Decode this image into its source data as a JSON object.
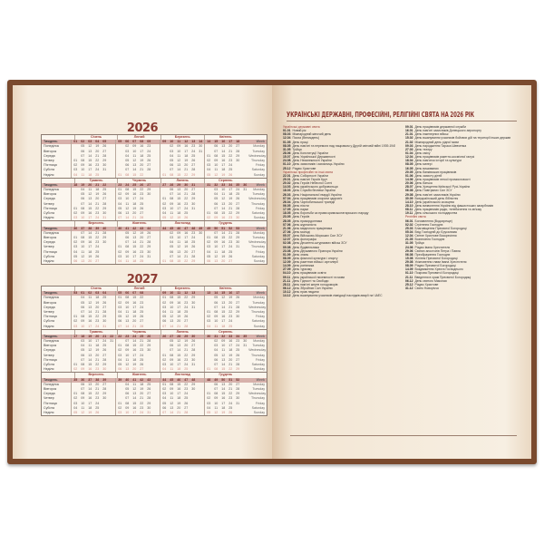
{
  "calendar": {
    "years": [
      2026,
      2027
    ],
    "week_label": "Тиждень",
    "week_label_en": "Week",
    "months": [
      "Січень",
      "Лютий",
      "Березень",
      "Квітень",
      "Травень",
      "Червень",
      "Липень",
      "Серпень",
      "Вересень",
      "Жовтень",
      "Листопад",
      "Грудень"
    ],
    "weekdays": [
      "Понеділок",
      "Вівторок",
      "Середа",
      "Четвер",
      "П'ятниця",
      "Субота",
      "Неділя"
    ],
    "weekdays_en": [
      "Monday",
      "Tuesday",
      "Wednesday",
      "Thursday",
      "Friday",
      "Saturday",
      "Sunday"
    ],
    "colors": {
      "header": "#d7b1ab",
      "month": "#9b3a35",
      "sunday": "#c9857d",
      "cover": "#7a4a2e"
    }
  },
  "holidays": {
    "title": "УКРАЇНСЬКІ ДЕРЖАВНІ, ПРОФЕСІЙНІ, РЕЛІГІЙНІ СВЯТА НА 2026 РІК",
    "left": [
      {
        "s": "Українські державні свята"
      },
      {
        "d": "01.01",
        "t": "Новий рік"
      },
      {
        "d": "08.03",
        "t": "Міжнародний жіночий день"
      },
      {
        "d": "12.04",
        "t": "Пасха (Великдень)"
      },
      {
        "d": "01.05",
        "t": "День праці"
      },
      {
        "d": "08.05",
        "t": "День пам'яті та перемоги над нацизмом у Другій світовій війні 1939-1945 років"
      },
      {
        "d": "31.05",
        "t": "Трійця"
      },
      {
        "d": "28.06",
        "t": "День Конституції України"
      },
      {
        "d": "15.07",
        "t": "День Української Державності"
      },
      {
        "d": "24.08",
        "t": "День Незалежності України"
      },
      {
        "d": "01.10",
        "t": "День захисників і захисниць України"
      },
      {
        "d": "25.12",
        "t": "Різдво Христове"
      },
      {
        "s": "Українські професійні та інші свята"
      },
      {
        "d": "22.01",
        "t": "День Соборності України"
      },
      {
        "d": "29.01",
        "t": "День пам'яті Героїв Крут"
      },
      {
        "d": "20.02",
        "t": "День Героїв Небесної Сотні"
      },
      {
        "d": "14.03",
        "t": "День українського добровольця"
      },
      {
        "d": "18.03",
        "t": "День Служби безпеки України"
      },
      {
        "d": "26.03",
        "t": "День Національної гвардії України"
      },
      {
        "d": "07.04",
        "t": "День працівників охорони здоров'я"
      },
      {
        "d": "26.04",
        "t": "День Чорнобильської трагедії"
      },
      {
        "d": "06.05",
        "t": "День піхоти"
      },
      {
        "d": "17.05",
        "t": "День науки"
      },
      {
        "d": "18.05",
        "t": "День боротьби за права кримськотатарського народу"
      },
      {
        "d": "23.05",
        "t": "День Героїв"
      },
      {
        "d": "28.05",
        "t": "День прикордонника"
      },
      {
        "d": "07.06",
        "t": "День журналіста"
      },
      {
        "d": "21.06",
        "t": "День медичного працівника"
      },
      {
        "d": "27.06",
        "t": "День молоді"
      },
      {
        "d": "05.07",
        "t": "День Військово-Морських Сил ЗСУ"
      },
      {
        "d": "12.07",
        "t": "День фотографа"
      },
      {
        "d": "02.08",
        "t": "День Десантно-штурмових військ ЗСУ"
      },
      {
        "d": "09.08",
        "t": "День будівельника"
      },
      {
        "d": "23.08",
        "t": "День Державного Прапора України"
      },
      {
        "d": "01.09",
        "t": "День знань"
      },
      {
        "d": "08.09",
        "t": "День фізичної культури і спорту"
      },
      {
        "d": "12.09",
        "t": "День ракетних військ і артилерії"
      },
      {
        "d": "14.09",
        "t": "День рятівника"
      },
      {
        "d": "27.09",
        "t": "День туризму"
      },
      {
        "d": "04.10",
        "t": "День працівників освіти"
      },
      {
        "d": "09.11",
        "t": "День української писемності та мови"
      },
      {
        "d": "21.11",
        "t": "День Гідності та Свободи"
      },
      {
        "d": "28.11",
        "t": "День пам'яті жертв голодоморів"
      },
      {
        "d": "06.12",
        "t": "День Збройних Сил України"
      },
      {
        "d": "10.12",
        "t": "День прав людини"
      },
      {
        "d": "14.12",
        "t": "День вшанування учасників ліквідації наслідків аварії на ЧАЕС"
      }
    ],
    "right": [
      {
        "d": "09.01",
        "t": "День працівників державної служби"
      },
      {
        "d": "16.01",
        "t": "День пам'яті захисників Донецького аеропорту"
      },
      {
        "d": "21.01",
        "t": "День інженерних військ"
      },
      {
        "d": "15.02",
        "t": "День вшанування учасників бойових дій на території інших держав"
      },
      {
        "d": "21.02",
        "t": "Міжнародний день рідної мови"
      },
      {
        "d": "09.03",
        "t": "День народження Тараса Шевченка"
      },
      {
        "d": "27.03",
        "t": "День театру"
      },
      {
        "d": "01.04",
        "t": "День сміху"
      },
      {
        "d": "12.04",
        "t": "День працівників ракетно-космічної галузі"
      },
      {
        "d": "18.04",
        "t": "День пам'яток історії та культури"
      },
      {
        "d": "08.05",
        "t": "День матері"
      },
      {
        "d": "16.05",
        "t": "День вишиванки"
      },
      {
        "d": "20.05",
        "t": "День банківських працівників"
      },
      {
        "d": "01.06",
        "t": "День захисту дітей"
      },
      {
        "d": "14.06",
        "t": "День працівників легкої промисловості"
      },
      {
        "d": "20.06",
        "t": "День батька"
      },
      {
        "d": "28.07",
        "t": "День Хрещення Київської Русі-України"
      },
      {
        "d": "06.08",
        "t": "День Повітряних Сил ЗСУ"
      },
      {
        "d": "29.08",
        "t": "День пам'яті захисників України"
      },
      {
        "d": "30.09",
        "t": "Всеукраїнський день бібліотек"
      },
      {
        "d": "14.10",
        "t": "День українського козацтва"
      },
      {
        "d": "28.10",
        "t": "День визволення України від фашистських загарбників"
      },
      {
        "d": "08.11",
        "t": "День працівників радіо, телебачення та зв'язку"
      },
      {
        "d": "19.11",
        "t": "День сільського господарства"
      },
      {
        "s": "Релігійні свята"
      },
      {
        "d": "06.01",
        "t": "Богоявлення (Водохреще)"
      },
      {
        "d": "02.02",
        "t": "Стрітення Господнє"
      },
      {
        "d": "25.03",
        "t": "Благовіщення Пресвятої Богородиці"
      },
      {
        "d": "05.04",
        "t": "Вхід Господній до Єрусалима"
      },
      {
        "d": "12.04",
        "t": "Світле Христове Воскресіння"
      },
      {
        "d": "21.05",
        "t": "Вознесіння Господнє"
      },
      {
        "d": "31.05",
        "t": "Трійця"
      },
      {
        "d": "24.06",
        "t": "Різдво Івана Хрестителя"
      },
      {
        "d": "29.06",
        "t": "Святих апостолів Петра і Павла"
      },
      {
        "d": "06.08",
        "t": "Преображення Господнє"
      },
      {
        "d": "15.08",
        "t": "Успіння Пресвятої Богородиці"
      },
      {
        "d": "29.08",
        "t": "Усікновення глави Івана Хрестителя"
      },
      {
        "d": "08.09",
        "t": "Різдво Пресвятої Богородиці"
      },
      {
        "d": "14.09",
        "t": "Воздвиження Хреста Господнього"
      },
      {
        "d": "01.10",
        "t": "Покрова Пресвятої Богородиці"
      },
      {
        "d": "21.11",
        "t": "Введення в храм Пресвятої Богородиці"
      },
      {
        "d": "06.12",
        "t": "День святого Миколая"
      },
      {
        "d": "25.12",
        "t": "Різдво Христове"
      },
      {
        "d": "31.12",
        "t": "Свято Новоріччя"
      }
    ]
  }
}
